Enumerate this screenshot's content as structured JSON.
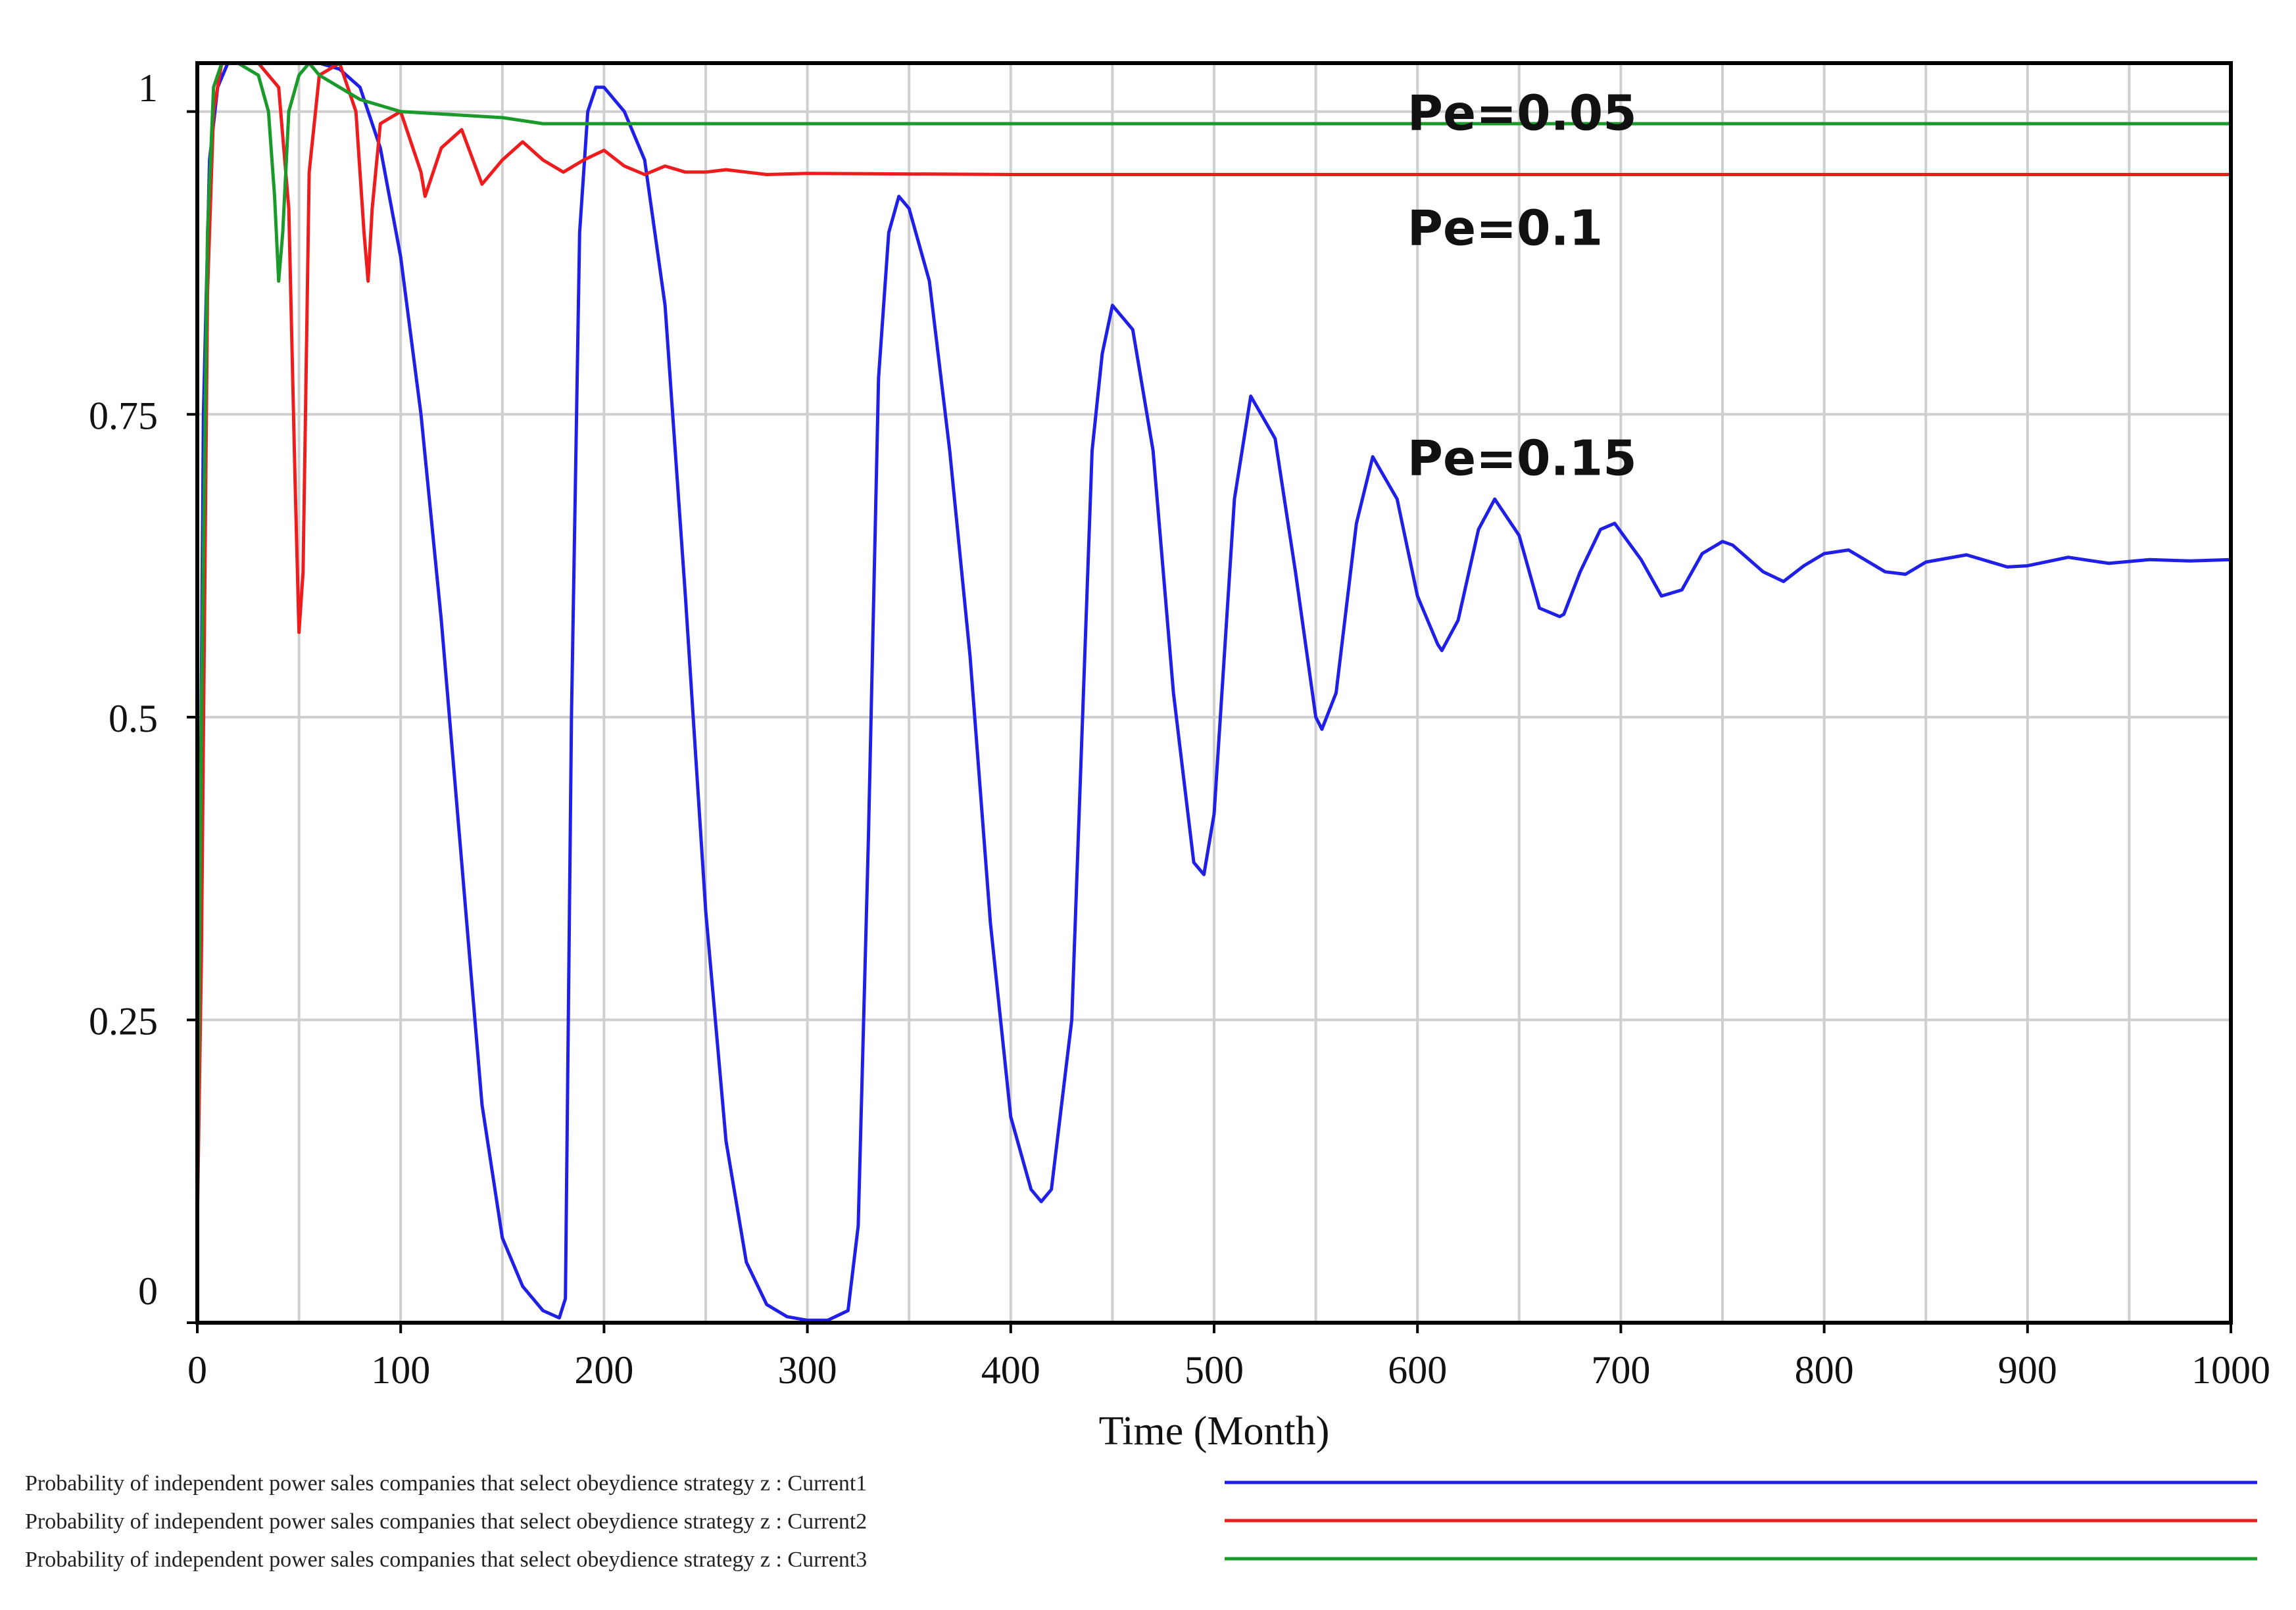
{
  "chart_data": {
    "type": "line",
    "title": "",
    "xlabel": "Time (Month)",
    "ylabel": "",
    "xlim": [
      0,
      1000
    ],
    "ylim": [
      0,
      1.04
    ],
    "x_ticks": [
      0,
      100,
      200,
      300,
      400,
      500,
      600,
      700,
      800,
      900,
      1000
    ],
    "y_ticks": [
      0,
      0.25,
      0.5,
      0.75,
      1
    ],
    "y_tick_labels": [
      "0",
      "0.25",
      "0.5",
      "0.75",
      "1"
    ],
    "grid": true,
    "legend_position": "bottom",
    "annotations": [
      {
        "text": "Pe=0.05",
        "x": 595,
        "y": 0.985
      },
      {
        "text": "Pe=0.1",
        "x": 595,
        "y": 0.89
      },
      {
        "text": "Pe=0.15",
        "x": 595,
        "y": 0.7
      }
    ],
    "series": [
      {
        "name": "Probability of independent power sales companies that select obeydience strategy z : Current1",
        "color": "#1f1fe8",
        "x": [
          0,
          3,
          6,
          10,
          15,
          20,
          30,
          40,
          50,
          60,
          70,
          80,
          90,
          100,
          110,
          120,
          130,
          140,
          150,
          160,
          170,
          178,
          181,
          184,
          188,
          192,
          196,
          200,
          210,
          220,
          230,
          240,
          250,
          260,
          270,
          280,
          290,
          300,
          310,
          320,
          325,
          330,
          335,
          340,
          345,
          350,
          360,
          370,
          380,
          390,
          400,
          410,
          415,
          420,
          430,
          440,
          445,
          450,
          460,
          470,
          480,
          490,
          495,
          500,
          510,
          518,
          530,
          540,
          550,
          553,
          560,
          570,
          578,
          590,
          600,
          610,
          612,
          620,
          630,
          638,
          650,
          660,
          670,
          672,
          680,
          690,
          697,
          710,
          720,
          730,
          740,
          750,
          755,
          770,
          780,
          790,
          800,
          812,
          830,
          840,
          850,
          870,
          890,
          900,
          920,
          940,
          960,
          980,
          1000
        ],
        "y": [
          0.08,
          0.75,
          0.96,
          1.02,
          1.04,
          1.04,
          1.04,
          1.04,
          1.04,
          1.04,
          1.035,
          1.02,
          0.97,
          0.88,
          0.75,
          0.58,
          0.38,
          0.18,
          0.07,
          0.03,
          0.01,
          0.004,
          0.02,
          0.5,
          0.9,
          1.0,
          1.02,
          1.02,
          1.0,
          0.96,
          0.84,
          0.6,
          0.34,
          0.15,
          0.05,
          0.015,
          0.005,
          0.002,
          0.002,
          0.01,
          0.08,
          0.4,
          0.78,
          0.9,
          0.93,
          0.92,
          0.86,
          0.72,
          0.55,
          0.33,
          0.17,
          0.11,
          0.1,
          0.11,
          0.25,
          0.72,
          0.8,
          0.84,
          0.82,
          0.72,
          0.52,
          0.38,
          0.37,
          0.42,
          0.68,
          0.765,
          0.73,
          0.62,
          0.5,
          0.49,
          0.52,
          0.66,
          0.715,
          0.68,
          0.6,
          0.56,
          0.555,
          0.58,
          0.655,
          0.68,
          0.65,
          0.59,
          0.583,
          0.585,
          0.62,
          0.655,
          0.66,
          0.63,
          0.6,
          0.605,
          0.635,
          0.645,
          0.642,
          0.62,
          0.612,
          0.625,
          0.635,
          0.638,
          0.62,
          0.618,
          0.628,
          0.634,
          0.624,
          0.625,
          0.632,
          0.627,
          0.63,
          0.629,
          0.63
        ]
      },
      {
        "name": "Probability of independent power sales companies that select obeydience strategy z : Current2",
        "color": "#ee1c1c",
        "x": [
          0,
          2,
          5,
          8,
          12,
          20,
          30,
          40,
          45,
          48,
          50,
          52,
          55,
          60,
          70,
          78,
          82,
          84,
          86,
          90,
          100,
          110,
          112,
          120,
          130,
          140,
          150,
          160,
          170,
          180,
          190,
          200,
          210,
          220,
          230,
          240,
          250,
          260,
          280,
          300,
          400,
          500,
          600,
          700,
          800,
          900,
          1000
        ],
        "y": [
          0.08,
          0.3,
          0.85,
          1.0,
          1.04,
          1.04,
          1.04,
          1.02,
          0.92,
          0.7,
          0.57,
          0.62,
          0.95,
          1.03,
          1.04,
          1.0,
          0.9,
          0.86,
          0.92,
          0.99,
          1.0,
          0.95,
          0.93,
          0.97,
          0.985,
          0.94,
          0.96,
          0.975,
          0.96,
          0.95,
          0.96,
          0.968,
          0.955,
          0.948,
          0.955,
          0.95,
          0.95,
          0.952,
          0.948,
          0.949,
          0.948,
          0.948,
          0.948,
          0.948,
          0.948,
          0.948,
          0.948
        ]
      },
      {
        "name": "Probability of independent power sales companies that select obeydience strategy z : Current3",
        "color": "#1a9a2a",
        "x": [
          0,
          2,
          5,
          8,
          12,
          20,
          30,
          35,
          38,
          40,
          42,
          45,
          50,
          55,
          60,
          70,
          80,
          90,
          100,
          150,
          170,
          180,
          200,
          250,
          300,
          400,
          500,
          600,
          700,
          800,
          900,
          1000
        ],
        "y": [
          0.08,
          0.5,
          0.9,
          1.02,
          1.04,
          1.04,
          1.03,
          1.0,
          0.93,
          0.86,
          0.9,
          1.0,
          1.03,
          1.04,
          1.03,
          1.02,
          1.01,
          1.005,
          1.0,
          0.995,
          0.99,
          0.99,
          0.99,
          0.99,
          0.99,
          0.99,
          0.99,
          0.99,
          0.99,
          0.99,
          0.99,
          0.99
        ]
      }
    ]
  }
}
